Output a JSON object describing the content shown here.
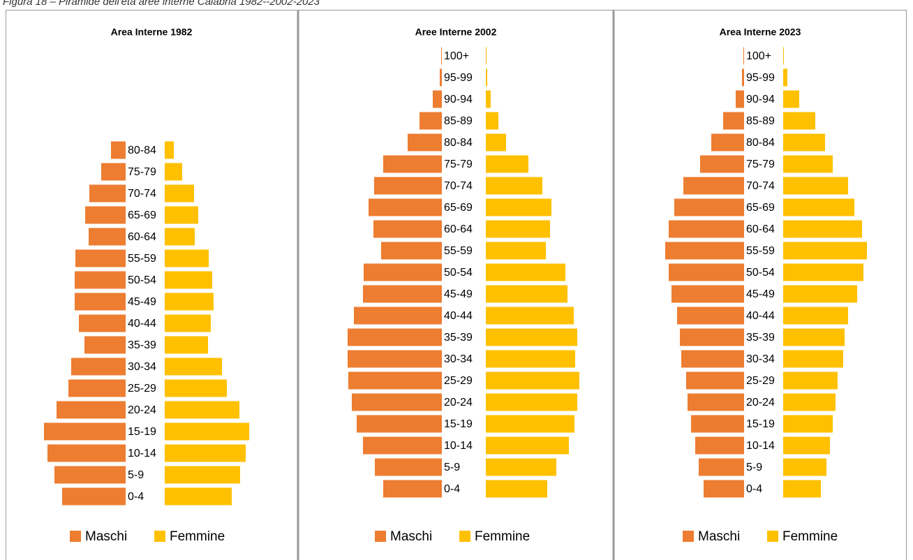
{
  "caption": "Figura 18 – Piramide dell'età aree interne Calabria 1982--2002-2023",
  "chart_data": [
    {
      "type": "bar",
      "title": "Area Interne 1982",
      "categories": [
        "80-84",
        "75-79",
        "70-74",
        "65-69",
        "60-64",
        "55-59",
        "50-54",
        "45-49",
        "40-44",
        "35-39",
        "30-34",
        "25-29",
        "20-24",
        "15-19",
        "10-14",
        "5-9",
        "0-4"
      ],
      "series": [
        {
          "name": "Maschi",
          "color": "#ED7D31",
          "values": [
            21,
            35,
            52,
            58,
            53,
            72,
            73,
            73,
            67,
            59,
            78,
            82,
            99,
            117,
            112,
            102,
            91
          ]
        },
        {
          "name": "Femmine",
          "color": "#FFC000",
          "values": [
            13,
            25,
            42,
            48,
            43,
            63,
            68,
            70,
            66,
            62,
            82,
            89,
            107,
            121,
            116,
            108,
            96
          ]
        }
      ]
    },
    {
      "type": "bar",
      "title": "Aree Interne 2002",
      "categories": [
        "100+",
        "95-99",
        "90-94",
        "85-89",
        "80-84",
        "75-79",
        "70-74",
        "65-69",
        "60-64",
        "55-59",
        "50-54",
        "45-49",
        "40-44",
        "35-39",
        "30-34",
        "25-29",
        "20-24",
        "15-19",
        "10-14",
        "5-9",
        "0-4"
      ],
      "series": [
        {
          "name": "Maschi",
          "color": "#ED7D31",
          "values": [
            1,
            3,
            13,
            32,
            49,
            84,
            97,
            105,
            98,
            87,
            112,
            113,
            126,
            135,
            135,
            134,
            129,
            122,
            113,
            96,
            84
          ]
        },
        {
          "name": "Femmine",
          "color": "#FFC000",
          "values": [
            1,
            2,
            7,
            18,
            29,
            61,
            81,
            94,
            92,
            86,
            114,
            117,
            126,
            131,
            128,
            134,
            131,
            127,
            119,
            101,
            88
          ]
        }
      ]
    },
    {
      "type": "bar",
      "title": "Area Interne 2023",
      "categories": [
        "100+",
        "95-99",
        "90-94",
        "85-89",
        "80-84",
        "75-79",
        "70-74",
        "65-69",
        "60-64",
        "55-59",
        "50-54",
        "45-49",
        "40-44",
        "35-39",
        "30-34",
        "25-29",
        "20-24",
        "15-19",
        "10-14",
        "5-9",
        "0-4"
      ],
      "series": [
        {
          "name": "Maschi",
          "color": "#ED7D31",
          "values": [
            1,
            3,
            12,
            30,
            47,
            63,
            87,
            100,
            108,
            113,
            108,
            104,
            96,
            92,
            90,
            83,
            81,
            76,
            70,
            65,
            58
          ]
        },
        {
          "name": "Femmine",
          "color": "#FFC000",
          "values": [
            1,
            6,
            23,
            46,
            60,
            71,
            93,
            102,
            113,
            120,
            115,
            106,
            93,
            88,
            86,
            78,
            75,
            71,
            67,
            62,
            54
          ]
        }
      ]
    }
  ]
}
